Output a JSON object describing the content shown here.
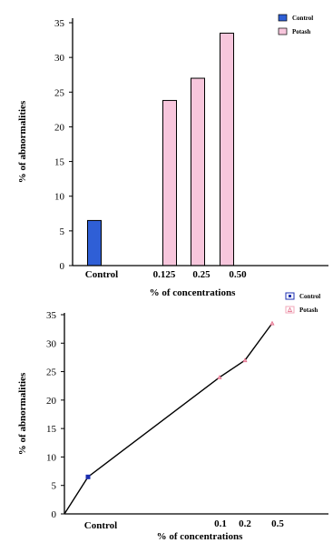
{
  "chart_data": [
    {
      "type": "bar",
      "ylabel": "% of abnormalities",
      "xlabel": "% of concentrations",
      "ylim": [
        0,
        35
      ],
      "yticks": [
        0,
        5,
        10,
        15,
        20,
        25,
        30,
        35
      ],
      "legend": {
        "placement": "top-right",
        "entries": [
          {
            "name": "Control",
            "color": "#2f5fd6"
          },
          {
            "name": "Potash",
            "color": "#f7c6dc"
          }
        ]
      },
      "categories": [
        "Control",
        "0.125",
        "0.25",
        "0.50"
      ],
      "values": [
        6.5,
        23.8,
        27.0,
        33.5
      ],
      "series_of_category": [
        "Control",
        "Potash",
        "Potash",
        "Potash"
      ]
    },
    {
      "type": "line",
      "ylabel": "% of abnormalities",
      "xlabel": "% of concentrations",
      "ylim": [
        0,
        35
      ],
      "yticks": [
        0,
        5,
        10,
        15,
        20,
        25,
        30,
        35
      ],
      "legend": {
        "placement": "top-right",
        "entries": [
          {
            "name": "Control",
            "color": "#1c2fb0"
          },
          {
            "name": "Potash",
            "color": "#f2a7b9"
          }
        ]
      },
      "xtick_labels": [
        "Control",
        "0.1",
        "0.2",
        "0.5"
      ],
      "points": [
        {
          "x": "Origin",
          "y": 0
        },
        {
          "x": "Control",
          "y": 6.5
        },
        {
          "x": "0.1",
          "y": 24.0
        },
        {
          "x": "0.2",
          "y": 27.0
        },
        {
          "x": "0.5",
          "y": 33.5
        }
      ]
    }
  ]
}
